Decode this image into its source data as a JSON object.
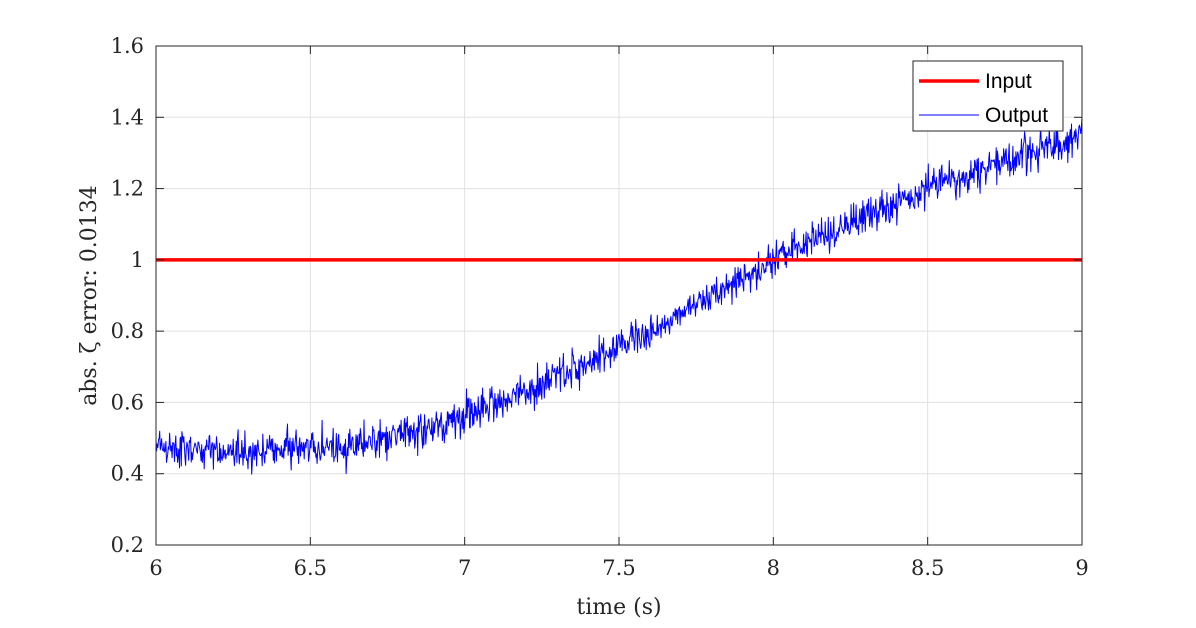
{
  "chart_data": {
    "type": "line",
    "xlabel": "time (s)",
    "ylabel": "abs. ζ error: 0.0134",
    "xlim": [
      6,
      9
    ],
    "ylim": [
      0.2,
      1.6
    ],
    "xticks": [
      6,
      6.5,
      7,
      7.5,
      8,
      8.5,
      9
    ],
    "xtick_labels": [
      "6",
      "6.5",
      "7",
      "7.5",
      "8",
      "8.5",
      "9"
    ],
    "yticks": [
      0.2,
      0.4,
      0.6,
      0.8,
      1,
      1.2,
      1.4,
      1.6
    ],
    "ytick_labels": [
      "0.2",
      "0.4",
      "0.6",
      "0.8",
      "1",
      "1.2",
      "1.4",
      "1.6"
    ],
    "grid": true,
    "legend_position": "top-right",
    "series": [
      {
        "name": "Input",
        "color": "#ff0000",
        "x": [
          6,
          9
        ],
        "y": [
          1,
          1
        ]
      },
      {
        "name": "Output",
        "color": "#0000ff",
        "x": [
          6.0,
          6.1,
          6.2,
          6.3,
          6.4,
          6.5,
          6.6,
          6.7,
          6.8,
          6.9,
          7.0,
          7.1,
          7.2,
          7.3,
          7.4,
          7.5,
          7.6,
          7.7,
          7.8,
          7.9,
          8.0,
          8.1,
          8.2,
          8.3,
          8.4,
          8.5,
          8.6,
          8.7,
          8.8,
          8.9,
          9.0
        ],
        "y": [
          0.48,
          0.47,
          0.47,
          0.46,
          0.47,
          0.47,
          0.48,
          0.49,
          0.51,
          0.53,
          0.57,
          0.6,
          0.63,
          0.67,
          0.71,
          0.76,
          0.8,
          0.85,
          0.9,
          0.95,
          1.0,
          1.04,
          1.08,
          1.12,
          1.16,
          1.2,
          1.23,
          1.26,
          1.29,
          1.32,
          1.35
        ]
      }
    ]
  }
}
